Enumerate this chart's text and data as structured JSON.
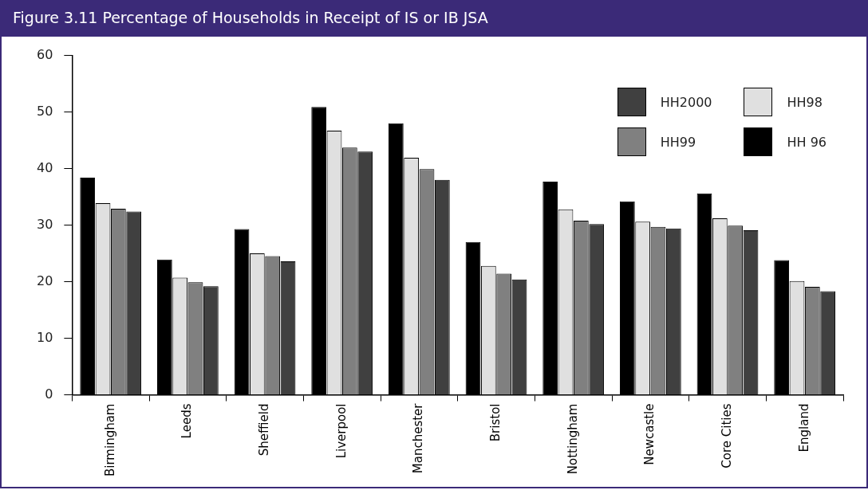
{
  "chart_data": {
    "type": "bar",
    "title": "Figure 3.11  Percentage of Households in Receipt of IS or IB JSA",
    "categories": [
      "Birmingham",
      "Leeds",
      "Sheffield",
      "Liverpool",
      "Manchester",
      "Bristol",
      "Nottingham",
      "Newcastle",
      "Core Cities",
      "England"
    ],
    "series": [
      {
        "name": "HH 96",
        "color": "#000000",
        "values": [
          38.4,
          23.9,
          29.3,
          50.9,
          48.0,
          27.0,
          37.7,
          34.2,
          35.6,
          23.8
        ]
      },
      {
        "name": "HH98",
        "color": "#e0e0e0",
        "values": [
          33.9,
          20.7,
          25.0,
          46.7,
          41.9,
          22.8,
          32.8,
          30.6,
          31.2,
          20.1
        ]
      },
      {
        "name": "HH99",
        "color": "#808080",
        "values": [
          32.9,
          19.9,
          24.5,
          43.7,
          39.9,
          21.4,
          30.8,
          29.7,
          29.9,
          19.1
        ]
      },
      {
        "name": "HH2000",
        "color": "#404040",
        "values": [
          32.4,
          19.2,
          23.6,
          43.0,
          38.0,
          20.4,
          30.2,
          29.4,
          29.1,
          18.3
        ]
      }
    ],
    "ylim": [
      0,
      60
    ],
    "yticks": [
      0,
      10,
      20,
      30,
      40,
      50,
      60
    ],
    "grid": false,
    "legend": "top right"
  }
}
